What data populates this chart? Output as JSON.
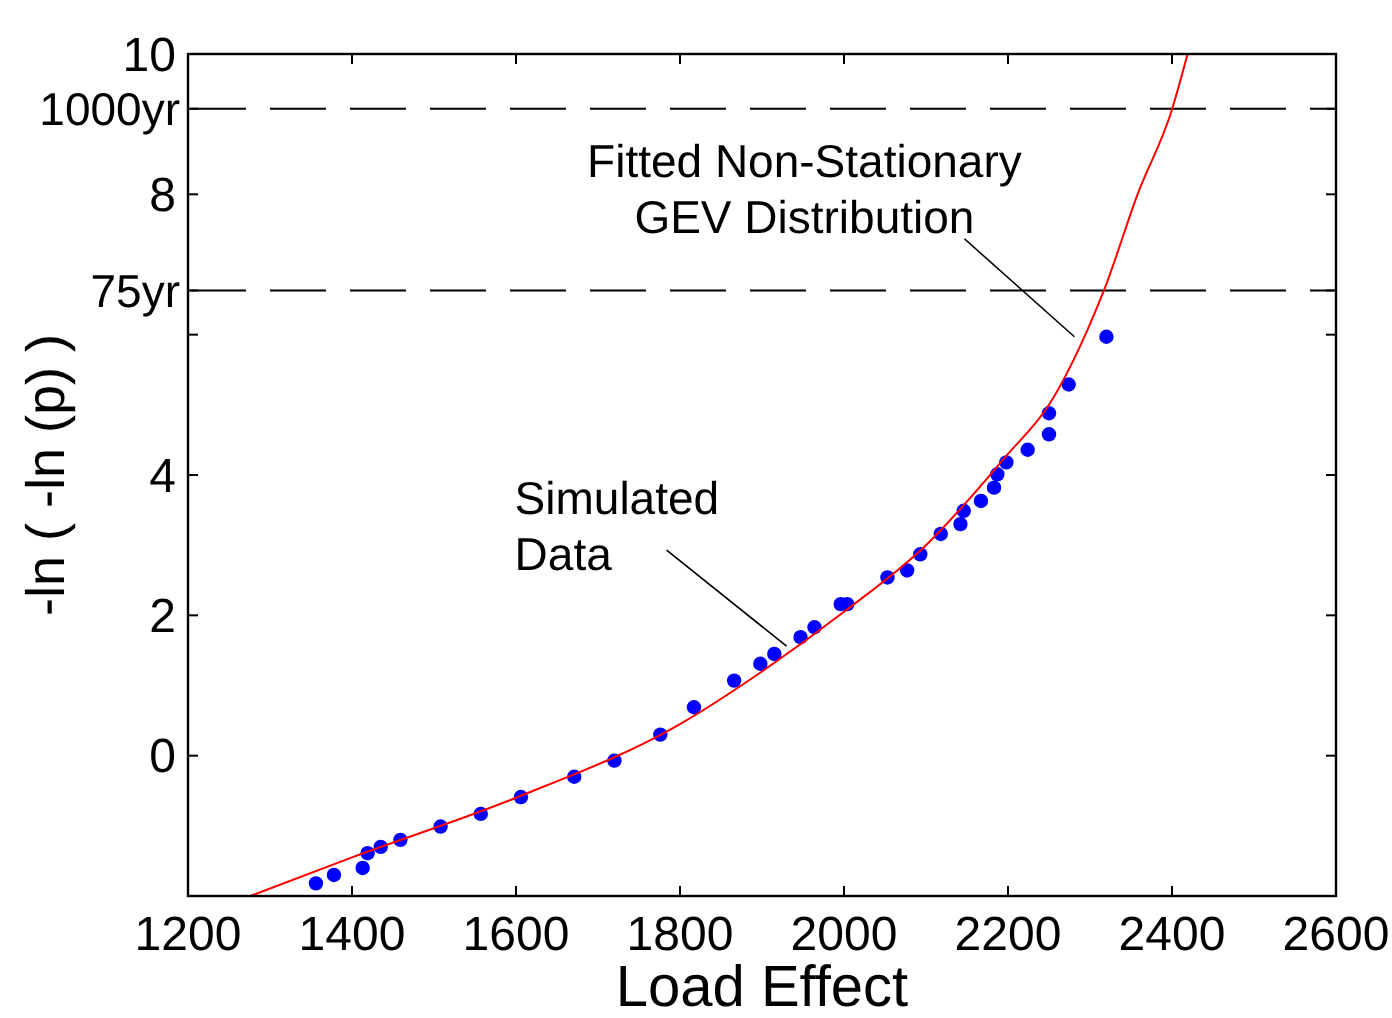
{
  "chart_data": {
    "type": "scatter",
    "xlabel": "Load Effect",
    "ylabel": "-ln ( -ln (p) )",
    "xlim": [
      1200,
      2600
    ],
    "xticks": [
      1200,
      1400,
      1600,
      1800,
      2000,
      2200,
      2400,
      2600
    ],
    "ylim": [
      -2,
      10
    ],
    "yticks": [
      0,
      2,
      4,
      {
        "value": 6,
        "label": null
      },
      8,
      10
    ],
    "grid": false,
    "marker": "circle",
    "series": [
      {
        "color": "#0000ff",
        "x": [
          1356,
          1378,
          1413,
          1419,
          1435,
          1459,
          1508,
          1557,
          1606,
          1671,
          1720,
          1776,
          1817,
          1866,
          1898,
          1915,
          1947,
          1964,
          1996,
          2004,
          2053,
          2077,
          2093,
          2118,
          2142,
          2146,
          2167,
          2183,
          2187,
          2198,
          2224,
          2250,
          2250,
          2274,
          2320
        ],
        "values": [
          -1.82,
          -1.7,
          -1.6,
          -1.39,
          -1.3,
          -1.2,
          -1.01,
          -0.83,
          -0.59,
          -0.3,
          -0.07,
          0.3,
          0.69,
          1.07,
          1.31,
          1.45,
          1.69,
          1.83,
          2.16,
          2.16,
          2.54,
          2.64,
          2.87,
          3.16,
          3.3,
          3.49,
          3.63,
          3.82,
          4.01,
          4.18,
          4.36,
          4.58,
          4.88,
          5.29,
          5.97
        ]
      },
      {
        "type": "line",
        "color": "#ff0000",
        "line_style": "solid",
        "marker": "none",
        "x": [
          1276,
          1400,
          1600,
          1800,
          1900,
          2000,
          2100,
          2200,
          2250,
          2300,
          2317,
          2358,
          2400,
          2419
        ],
        "values": [
          -2,
          -1.45,
          -0.6,
          0.45,
          1.2,
          2.05,
          3.0,
          4.3,
          5.0,
          6.15,
          6.63,
          8.0,
          9.21,
          10
        ]
      }
    ],
    "ref_lines": [
      {
        "axis": "y",
        "value": 6.63,
        "label": "75yr",
        "color": "#000000",
        "line_style": "dashed"
      },
      {
        "axis": "y",
        "value": 9.22,
        "label": "1000yr",
        "color": "#000000",
        "line_style": "dashed"
      }
    ],
    "annotations": [
      {
        "text": "Fitted Non-Stationary\nGEV Distribution",
        "x": 2281,
        "y": 5.97
      },
      {
        "text": "Simulated\nData",
        "x": 1930,
        "y": 1.56
      }
    ]
  }
}
